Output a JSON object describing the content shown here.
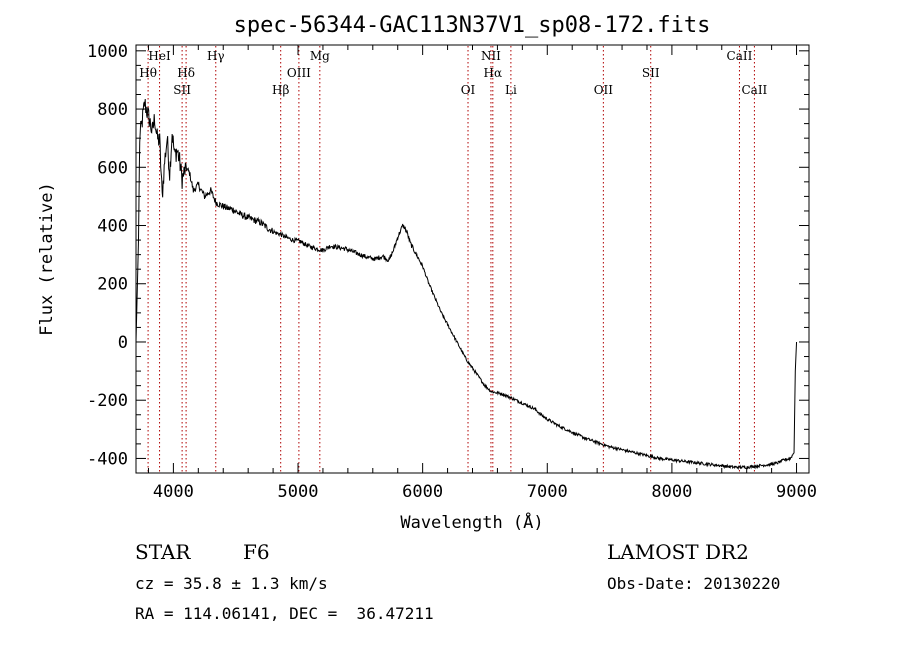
{
  "chart_data": {
    "type": "line",
    "title": "spec-56344-GAC113N37V1_sp08-172.fits",
    "xlabel": "Wavelength (Å)",
    "ylabel": "Flux (relative)",
    "xlim": [
      3700,
      9100
    ],
    "ylim": [
      -450,
      1020
    ],
    "xticks": [
      4000,
      5000,
      6000,
      7000,
      8000,
      9000
    ],
    "yticks": [
      -400,
      -200,
      0,
      200,
      400,
      600,
      800,
      1000
    ],
    "grid": false,
    "series": [
      {
        "x": [
          3700,
          3720,
          3730,
          3750,
          3770,
          3790,
          3810,
          3830,
          3850,
          3870,
          3890,
          3910,
          3930,
          3950,
          3970,
          3990,
          4010,
          4030,
          4050,
          4070,
          4100,
          4130,
          4160,
          4200,
          4250,
          4300,
          4340,
          4380,
          4430,
          4480,
          4530,
          4580,
          4640,
          4700,
          4760,
          4820,
          4860,
          4900,
          4960,
          5020,
          5080,
          5150,
          5200,
          5260,
          5320,
          5380,
          5440,
          5500,
          5560,
          5620,
          5680,
          5730,
          5770,
          5800,
          5820,
          5840,
          5860,
          5880,
          5900,
          5950,
          6000,
          6050,
          6100,
          6150,
          6200,
          6250,
          6300,
          6350,
          6400,
          6450,
          6500,
          6550,
          6600,
          6650,
          6700,
          6750,
          6800,
          6850,
          6900,
          6950,
          7000,
          7100,
          7200,
          7300,
          7400,
          7500,
          7600,
          7700,
          7800,
          7900,
          8000,
          8100,
          8200,
          8300,
          8400,
          8500,
          8600,
          8700,
          8800,
          8850,
          8900,
          8950,
          8980,
          8990,
          9000
        ],
        "y": [
          0,
          350,
          700,
          760,
          820,
          790,
          760,
          720,
          770,
          700,
          690,
          500,
          620,
          700,
          580,
          720,
          640,
          660,
          620,
          560,
          600,
          580,
          520,
          540,
          500,
          520,
          480,
          470,
          460,
          455,
          440,
          430,
          420,
          410,
          390,
          375,
          370,
          360,
          350,
          345,
          330,
          320,
          315,
          330,
          325,
          320,
          310,
          300,
          290,
          285,
          295,
          280,
          320,
          360,
          380,
          400,
          390,
          370,
          340,
          300,
          260,
          200,
          150,
          100,
          60,
          20,
          -20,
          -60,
          -90,
          -120,
          -150,
          -170,
          -175,
          -180,
          -190,
          -200,
          -210,
          -220,
          -230,
          -250,
          -265,
          -290,
          -310,
          -330,
          -345,
          -360,
          -370,
          -380,
          -390,
          -400,
          -405,
          -410,
          -415,
          -420,
          -425,
          -430,
          -430,
          -425,
          -420,
          -415,
          -405,
          -400,
          -380,
          -100,
          0
        ]
      }
    ],
    "lines": [
      {
        "name": "Hθ",
        "wl": 3797,
        "row": 1
      },
      {
        "name": "HeI",
        "wl": 3889,
        "row": 0
      },
      {
        "name": "SII",
        "wl": 4070,
        "row": 2
      },
      {
        "name": "Hδ",
        "wl": 4102,
        "row": 1
      },
      {
        "name": "Hγ",
        "wl": 4340,
        "row": 0
      },
      {
        "name": "Hβ",
        "wl": 4861,
        "row": 2
      },
      {
        "name": "OIII",
        "wl": 5007,
        "row": 1
      },
      {
        "name": "Mg",
        "wl": 5175,
        "row": 0
      },
      {
        "name": "OI",
        "wl": 6364,
        "row": 2
      },
      {
        "name": "NII",
        "wl": 6548,
        "row": 0
      },
      {
        "name": "Hα",
        "wl": 6563,
        "row": 1
      },
      {
        "name": "Li",
        "wl": 6708,
        "row": 2
      },
      {
        "name": "OII",
        "wl": 7450,
        "row": 2
      },
      {
        "name": "SII",
        "wl": 7830,
        "row": 1
      },
      {
        "name": "CaII",
        "wl": 8542,
        "row": 0
      },
      {
        "name": "CaII",
        "wl": 8662,
        "row": 2
      }
    ]
  },
  "info": {
    "class": "STAR",
    "subclass": "F6",
    "survey": "LAMOST DR2",
    "cz": "cz = 35.8 ± 1.3 km/s",
    "obs_date": "Obs-Date: 20130220",
    "radec": "RA = 114.06141, DEC =  36.47211"
  }
}
